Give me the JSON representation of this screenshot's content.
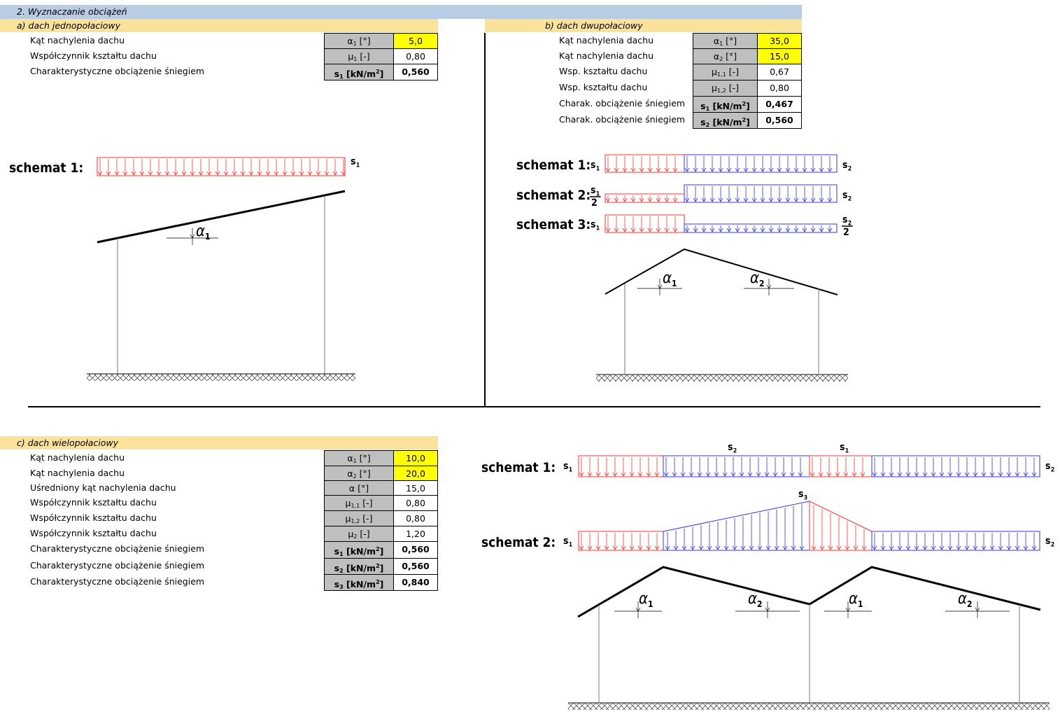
{
  "header": {
    "title": "2.  Wyznaczanie obciążeń"
  },
  "section_a": {
    "title": "a)  dach jednopołaciowy",
    "rows": [
      {
        "label": "Kąt nachylenia dachu",
        "sym": "α",
        "sub": "1",
        "unit": " [°]",
        "value": "5,0",
        "input": true,
        "bold": false
      },
      {
        "label": "Współczynnik kształtu dachu",
        "sym": "μ",
        "sub": "1",
        "unit": " [-]",
        "value": "0,80",
        "input": false,
        "bold": false
      },
      {
        "label": "Charakterystyczne obciążenie śniegiem",
        "sym": "s",
        "sub": "1",
        "unit": " [kN/m",
        "sup": "2",
        "unit2": "]",
        "value": "0,560",
        "input": false,
        "bold": true
      }
    ],
    "schemes": [
      {
        "label": "schemat  1:"
      }
    ]
  },
  "section_b": {
    "title": "b)  dach dwupołaciowy",
    "rows": [
      {
        "label": "Kąt nachylenia dachu",
        "sym": "α",
        "sub": "1",
        "unit": " [°]",
        "value": "35,0",
        "input": true,
        "bold": false
      },
      {
        "label": "Kąt nachylenia dachu",
        "sym": "α",
        "sub": "2",
        "unit": " [°]",
        "value": "15,0",
        "input": true,
        "bold": false
      },
      {
        "label": "Wsp. kształtu dachu",
        "sym": "μ",
        "sub": "1,1",
        "unit": " [-]",
        "value": "0,67",
        "input": false,
        "bold": false
      },
      {
        "label": "Wsp. kształtu dachu",
        "sym": "μ",
        "sub": "1,2",
        "unit": " [-]",
        "value": "0,80",
        "input": false,
        "bold": false
      },
      {
        "label": "Charak. obciążenie śniegiem",
        "sym": "s",
        "sub": "1",
        "unit": " [kN/m",
        "sup": "2",
        "unit2": "]",
        "value": "0,467",
        "input": false,
        "bold": true
      },
      {
        "label": "Charak. obciążenie śniegiem",
        "sym": "s",
        "sub": "2",
        "unit": " [kN/m",
        "sup": "2",
        "unit2": "]",
        "value": "0,560",
        "input": false,
        "bold": true
      }
    ],
    "schemes": [
      {
        "label": "schemat  1:"
      },
      {
        "label": "schemat  2:"
      },
      {
        "label": "schemat  3:"
      }
    ]
  },
  "section_c": {
    "title": "c)  dach wielopołaciowy",
    "rows": [
      {
        "label": "Kąt nachylenia dachu",
        "sym": "α",
        "sub": "1",
        "unit": " [°]",
        "value": "10,0",
        "input": true,
        "bold": false
      },
      {
        "label": "Kąt nachylenia dachu",
        "sym": "α",
        "sub": "2",
        "unit": " [°]",
        "value": "20,0",
        "input": true,
        "bold": false
      },
      {
        "label": "Uśredniony kąt nachylenia dachu",
        "sym": "α",
        "sub": "",
        "unit": " [°]",
        "value": "15,0",
        "input": false,
        "bold": false
      },
      {
        "label": "Współczynnik kształtu dachu",
        "sym": "μ",
        "sub": "1,1",
        "unit": " [-]",
        "value": "0,80",
        "input": false,
        "bold": false
      },
      {
        "label": "Współczynnik kształtu dachu",
        "sym": "μ",
        "sub": "1,2",
        "unit": " [-]",
        "value": "0,80",
        "input": false,
        "bold": false
      },
      {
        "label": "Współczynnik kształtu dachu",
        "sym": "μ",
        "sub": "2",
        "unit": " [-]",
        "value": "1,20",
        "input": false,
        "bold": false
      },
      {
        "label": "Charakterystyczne obciążenie śniegiem",
        "sym": "s",
        "sub": "1",
        "unit": " [kN/m",
        "sup": "2",
        "unit2": "]",
        "value": "0,560",
        "input": false,
        "bold": true
      },
      {
        "label": "Charakterystyczne obciążenie śniegiem",
        "sym": "s",
        "sub": "2",
        "unit": " [kN/m",
        "sup": "2",
        "unit2": "]",
        "value": "0,560",
        "input": false,
        "bold": true
      },
      {
        "label": "Charakterystyczne obciążenie śniegiem",
        "sym": "s",
        "sub": "3",
        "unit": " [kN/m",
        "sup": "2",
        "unit2": "]",
        "value": "0,840",
        "input": false,
        "bold": true
      }
    ],
    "schemes": [
      {
        "label": "schemat  1:"
      },
      {
        "label": "schemat  2:"
      }
    ]
  },
  "diagram_labels": {
    "s": "s",
    "sub1": "1",
    "sub2": "2",
    "sub3": "3",
    "half": "2",
    "alpha": "α"
  },
  "colors": {
    "header": "#b8cce4",
    "section": "#fbe29a",
    "input": "#ffff00",
    "symbol_cell": "#bfbfbf",
    "load_red": "#ff3030",
    "load_blue": "#3030ff"
  }
}
